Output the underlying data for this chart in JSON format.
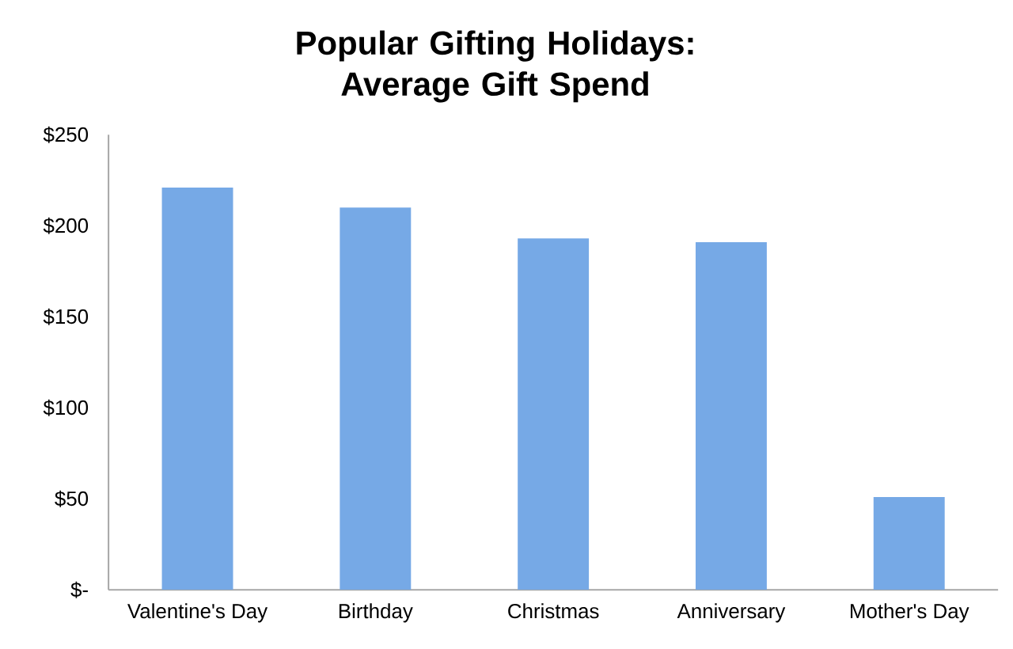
{
  "chart_data": {
    "type": "bar",
    "title": "Popular Gifting Holidays: Average Gift Spend",
    "categories": [
      "Valentine's Day",
      "Birthday",
      "Christmas",
      "Anniversary",
      "Mother's Day"
    ],
    "values": [
      221,
      210,
      193,
      191,
      51
    ],
    "color": "#76a9e6",
    "ylim": [
      0,
      250
    ],
    "yticks": [
      {
        "value": 0,
        "label": "$-"
      },
      {
        "value": 50,
        "label": "$50"
      },
      {
        "value": 100,
        "label": "$100"
      },
      {
        "value": 150,
        "label": "$150"
      },
      {
        "value": 200,
        "label": "$200"
      },
      {
        "value": 250,
        "label": "$250"
      }
    ]
  }
}
